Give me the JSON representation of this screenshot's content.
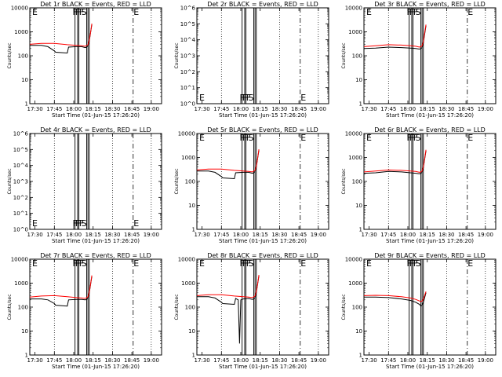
{
  "chart_data": [
    {
      "type": "line",
      "title": "Det 1r BLACK = Events, RED = LLD",
      "xlabel": "Start Time (01-Jun-15 17:26:20)",
      "ylabel": "Counts/sec",
      "yscale": "log",
      "ylim": [
        1,
        10000
      ],
      "yticks": [
        "1",
        "10",
        "100",
        "1000",
        "10000"
      ],
      "xlim": [
        "17:26",
        "19:08"
      ],
      "xticks": [
        "17:30",
        "17:45",
        "18:00",
        "18:15",
        "18:30",
        "18:45",
        "19:00"
      ],
      "markers": [
        "F",
        "F",
        "F",
        "F",
        "S"
      ],
      "end_label": "E",
      "colors": {
        "events": "#000000",
        "lld": "#ff0000"
      },
      "series": [
        {
          "name": "Events",
          "color": "#000000",
          "x": [
            "17:26",
            "17:35",
            "17:40",
            "17:45",
            "17:46",
            "17:55",
            "17:56",
            "18:02",
            "18:06",
            "18:09",
            "18:10",
            "18:11",
            "18:12",
            "18:13",
            "18:14"
          ],
          "y": [
            270,
            270,
            240,
            160,
            140,
            130,
            230,
            240,
            240,
            220,
            230,
            260,
            400,
            900,
            2000
          ]
        },
        {
          "name": "LLD",
          "color": "#ff0000",
          "x": [
            "17:26",
            "17:35",
            "17:45",
            "17:55",
            "18:02",
            "18:06",
            "18:09",
            "18:10",
            "18:11",
            "18:12",
            "18:13",
            "18:14"
          ],
          "y": [
            300,
            330,
            330,
            290,
            270,
            260,
            250,
            270,
            290,
            450,
            900,
            2200
          ]
        }
      ]
    },
    {
      "type": "line",
      "title": "Det 2r BLACK = Events, RED = LLD",
      "xlabel": "Start Time (01-Jun-15 17:26:20)",
      "ylabel": "Counts/sec",
      "yscale": "log",
      "ylim": [
        1,
        1000000
      ],
      "yticks": [
        "10^0",
        "10^1",
        "10^2",
        "10^3",
        "10^4",
        "10^5",
        "10^6"
      ],
      "xlim": [
        "17:26",
        "19:08"
      ],
      "xticks": [
        "17:30",
        "17:45",
        "18:00",
        "18:15",
        "18:30",
        "18:45",
        "19:00"
      ],
      "markers": [
        "F",
        "F",
        "F",
        "F",
        "S"
      ],
      "end_label": "E",
      "colors": {
        "events": "#000000",
        "lld": "#ff0000"
      },
      "series": []
    },
    {
      "type": "line",
      "title": "Det 3r BLACK = Events, RED = LLD",
      "xlabel": "Start Time (01-Jun-15 17:26:20)",
      "ylabel": "Counts/sec",
      "yscale": "log",
      "ylim": [
        1,
        10000
      ],
      "yticks": [
        "1",
        "10",
        "100",
        "1000",
        "10000"
      ],
      "xlim": [
        "17:26",
        "19:08"
      ],
      "xticks": [
        "17:30",
        "17:45",
        "18:00",
        "18:15",
        "18:30",
        "18:45",
        "19:00"
      ],
      "markers": [
        "F",
        "F",
        "F",
        "F",
        "S"
      ],
      "end_label": "E",
      "colors": {
        "events": "#000000",
        "lld": "#ff0000"
      },
      "series": [
        {
          "name": "Events",
          "color": "#000000",
          "x": [
            "17:26",
            "17:35",
            "17:45",
            "17:55",
            "18:02",
            "18:06",
            "18:09",
            "18:10",
            "18:11",
            "18:12",
            "18:13",
            "18:14"
          ],
          "y": [
            200,
            210,
            230,
            220,
            210,
            200,
            190,
            200,
            220,
            350,
            800,
            1800
          ]
        },
        {
          "name": "LLD",
          "color": "#ff0000",
          "x": [
            "17:26",
            "17:35",
            "17:45",
            "17:55",
            "18:02",
            "18:06",
            "18:09",
            "18:10",
            "18:11",
            "18:12",
            "18:13",
            "18:14"
          ],
          "y": [
            240,
            260,
            290,
            280,
            260,
            250,
            230,
            240,
            260,
            400,
            900,
            2000
          ]
        }
      ]
    },
    {
      "type": "line",
      "title": "Det 4r BLACK = Events, RED = LLD",
      "xlabel": "Start Time (01-Jun-15 17:26:20)",
      "ylabel": "Counts/sec",
      "yscale": "log",
      "ylim": [
        1,
        1000000
      ],
      "yticks": [
        "10^0",
        "10^1",
        "10^2",
        "10^3",
        "10^4",
        "10^5",
        "10^6"
      ],
      "xlim": [
        "17:26",
        "19:08"
      ],
      "xticks": [
        "17:30",
        "17:45",
        "18:00",
        "18:15",
        "18:30",
        "18:45",
        "19:00"
      ],
      "markers": [
        "F",
        "F",
        "F",
        "F",
        "S"
      ],
      "end_label": "E",
      "colors": {
        "events": "#000000",
        "lld": "#ff0000"
      },
      "series": []
    },
    {
      "type": "line",
      "title": "Det 5r BLACK = Events, RED = LLD",
      "xlabel": "Start Time (01-Jun-15 17:26:20)",
      "ylabel": "Counts/sec",
      "yscale": "log",
      "ylim": [
        1,
        10000
      ],
      "yticks": [
        "1",
        "10",
        "100",
        "1000",
        "10000"
      ],
      "xlim": [
        "17:26",
        "19:08"
      ],
      "xticks": [
        "17:30",
        "17:45",
        "18:00",
        "18:15",
        "18:30",
        "18:45",
        "19:00"
      ],
      "markers": [
        "F",
        "F",
        "F",
        "F",
        "S"
      ],
      "end_label": "E",
      "colors": {
        "events": "#000000",
        "lld": "#ff0000"
      },
      "series": [
        {
          "name": "Events",
          "color": "#000000",
          "x": [
            "17:26",
            "17:35",
            "17:40",
            "17:45",
            "17:46",
            "17:55",
            "17:56",
            "18:02",
            "18:06",
            "18:09",
            "18:10",
            "18:11",
            "18:12",
            "18:13",
            "18:14"
          ],
          "y": [
            270,
            270,
            240,
            160,
            140,
            130,
            230,
            240,
            240,
            220,
            230,
            260,
            400,
            900,
            2000
          ]
        },
        {
          "name": "LLD",
          "color": "#ff0000",
          "x": [
            "17:26",
            "17:35",
            "17:45",
            "17:55",
            "18:02",
            "18:06",
            "18:09",
            "18:10",
            "18:11",
            "18:12",
            "18:13",
            "18:14"
          ],
          "y": [
            300,
            330,
            330,
            290,
            270,
            260,
            250,
            270,
            290,
            450,
            900,
            2200
          ]
        }
      ]
    },
    {
      "type": "line",
      "title": "Det 6r BLACK = Events, RED = LLD",
      "xlabel": "Start Time (01-Jun-15 17:26:20)",
      "ylabel": "Counts/sec",
      "yscale": "log",
      "ylim": [
        1,
        10000
      ],
      "yticks": [
        "1",
        "10",
        "100",
        "1000",
        "10000"
      ],
      "xlim": [
        "17:26",
        "19:08"
      ],
      "xticks": [
        "17:30",
        "17:45",
        "18:00",
        "18:15",
        "18:30",
        "18:45",
        "19:00"
      ],
      "markers": [
        "F",
        "F",
        "F",
        "F",
        "S"
      ],
      "end_label": "E",
      "colors": {
        "events": "#000000",
        "lld": "#ff0000"
      },
      "series": [
        {
          "name": "Events",
          "color": "#000000",
          "x": [
            "17:26",
            "17:35",
            "17:45",
            "17:55",
            "18:02",
            "18:06",
            "18:09",
            "18:10",
            "18:11",
            "18:12",
            "18:13",
            "18:14"
          ],
          "y": [
            220,
            230,
            260,
            250,
            230,
            220,
            210,
            220,
            240,
            380,
            850,
            1900
          ]
        },
        {
          "name": "LLD",
          "color": "#ff0000",
          "x": [
            "17:26",
            "17:35",
            "17:45",
            "17:55",
            "18:02",
            "18:06",
            "18:09",
            "18:10",
            "18:11",
            "18:12",
            "18:13",
            "18:14"
          ],
          "y": [
            250,
            270,
            300,
            290,
            270,
            260,
            240,
            250,
            270,
            420,
            900,
            2100
          ]
        }
      ]
    },
    {
      "type": "line",
      "title": "Det 7r BLACK = Events, RED = LLD",
      "xlabel": "Start Time (01-Jun-15 17:26:20)",
      "ylabel": "Counts/sec",
      "yscale": "log",
      "ylim": [
        1,
        10000
      ],
      "yticks": [
        "1",
        "10",
        "100",
        "1000",
        "10000"
      ],
      "xlim": [
        "17:26",
        "19:08"
      ],
      "xticks": [
        "17:30",
        "17:45",
        "18:00",
        "18:15",
        "18:30",
        "18:45",
        "19:00"
      ],
      "markers": [
        "F",
        "F",
        "F",
        "F",
        "S"
      ],
      "end_label": "E",
      "colors": {
        "events": "#000000",
        "lld": "#ff0000"
      },
      "series": [
        {
          "name": "Events",
          "color": "#000000",
          "x": [
            "17:26",
            "17:35",
            "17:40",
            "17:45",
            "17:46",
            "17:55",
            "17:56",
            "18:02",
            "18:06",
            "18:09",
            "18:10",
            "18:11",
            "18:12",
            "18:13",
            "18:14"
          ],
          "y": [
            220,
            220,
            200,
            140,
            120,
            110,
            200,
            210,
            210,
            200,
            210,
            240,
            380,
            850,
            1900
          ]
        },
        {
          "name": "LLD",
          "color": "#ff0000",
          "x": [
            "17:26",
            "17:35",
            "17:45",
            "17:55",
            "18:02",
            "18:06",
            "18:09",
            "18:10",
            "18:11",
            "18:12",
            "18:13",
            "18:14"
          ],
          "y": [
            260,
            290,
            300,
            270,
            250,
            240,
            230,
            250,
            270,
            420,
            880,
            2100
          ]
        }
      ]
    },
    {
      "type": "line",
      "title": "Det 8r BLACK = Events, RED = LLD",
      "xlabel": "Start Time (01-Jun-15 17:26:20)",
      "ylabel": "Counts/sec",
      "yscale": "log",
      "ylim": [
        1,
        10000
      ],
      "yticks": [
        "1",
        "10",
        "100",
        "1000",
        "10000"
      ],
      "xlim": [
        "17:26",
        "19:08"
      ],
      "xticks": [
        "17:30",
        "17:45",
        "18:00",
        "18:15",
        "18:30",
        "18:45",
        "19:00"
      ],
      "markers": [
        "F",
        "F",
        "F",
        "F",
        "S"
      ],
      "end_label": "E",
      "colors": {
        "events": "#000000",
        "lld": "#ff0000"
      },
      "series": [
        {
          "name": "Events",
          "color": "#000000",
          "x": [
            "17:26",
            "17:35",
            "17:40",
            "17:45",
            "17:46",
            "17:55",
            "17:56",
            "17:58",
            "17:59",
            "18:00",
            "18:02",
            "18:06",
            "18:09",
            "18:10",
            "18:11",
            "18:12",
            "18:13",
            "18:14"
          ],
          "y": [
            270,
            270,
            240,
            160,
            140,
            130,
            230,
            200,
            3,
            200,
            220,
            230,
            210,
            220,
            250,
            400,
            900,
            2000
          ]
        },
        {
          "name": "LLD",
          "color": "#ff0000",
          "x": [
            "17:26",
            "17:35",
            "17:45",
            "17:55",
            "18:02",
            "18:06",
            "18:09",
            "18:10",
            "18:11",
            "18:12",
            "18:13",
            "18:14"
          ],
          "y": [
            300,
            330,
            330,
            290,
            270,
            260,
            250,
            270,
            290,
            450,
            900,
            2200
          ]
        }
      ]
    },
    {
      "type": "line",
      "title": "Det 9r BLACK = Events, RED = LLD",
      "xlabel": "Start Time (01-Jun-15 17:26:20)",
      "ylabel": "Counts/sec",
      "yscale": "log",
      "ylim": [
        1,
        10000
      ],
      "yticks": [
        "1",
        "10",
        "100",
        "1000",
        "10000"
      ],
      "xlim": [
        "17:26",
        "19:08"
      ],
      "xticks": [
        "17:30",
        "17:45",
        "18:00",
        "18:15",
        "18:30",
        "18:45",
        "19:00"
      ],
      "markers": [
        "F",
        "F",
        "F",
        "F",
        "S"
      ],
      "end_label": "E",
      "colors": {
        "events": "#000000",
        "lld": "#ff0000"
      },
      "series": [
        {
          "name": "Events",
          "color": "#000000",
          "x": [
            "17:26",
            "17:35",
            "17:45",
            "17:55",
            "18:02",
            "18:06",
            "18:09",
            "18:10",
            "18:11",
            "18:12",
            "18:13",
            "18:14"
          ],
          "y": [
            260,
            260,
            250,
            220,
            190,
            160,
            130,
            110,
            120,
            160,
            250,
            400
          ]
        },
        {
          "name": "LLD",
          "color": "#ff0000",
          "x": [
            "17:26",
            "17:35",
            "17:45",
            "17:55",
            "18:02",
            "18:06",
            "18:09",
            "18:10",
            "18:11",
            "18:12",
            "18:13",
            "18:14"
          ],
          "y": [
            300,
            310,
            300,
            270,
            240,
            210,
            180,
            170,
            180,
            220,
            300,
            450
          ]
        }
      ]
    }
  ]
}
